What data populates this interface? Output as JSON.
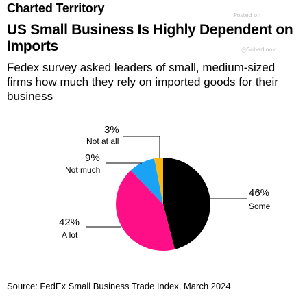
{
  "header": {
    "brand": "Charted Territory",
    "title": "US Small Business Is Highly Dependent on Imports",
    "subtitle": "Fedex survey asked leaders of small, medium-sized firms how much they rely on imported goods for their business"
  },
  "watermark": {
    "posted": "Posted on",
    "handle": "@SoberLook"
  },
  "chart_data": {
    "type": "pie",
    "title": "US Small Business Is Highly Dependent on Imports",
    "slices": [
      {
        "label": "Some",
        "value": 46,
        "value_label": "46%",
        "color": "#000000"
      },
      {
        "label": "A lot",
        "value": 42,
        "value_label": "42%",
        "color": "#ff0f87"
      },
      {
        "label": "Not much",
        "value": 9,
        "value_label": "9%",
        "color": "#1aa3f5"
      },
      {
        "label": "Not at all",
        "value": 3,
        "value_label": "3%",
        "color": "#fcb713"
      }
    ],
    "start": "12 o'clock",
    "direction": "clockwise"
  },
  "footer": {
    "source": "Source: FedEx Small Business Trade Index, March 2024"
  }
}
